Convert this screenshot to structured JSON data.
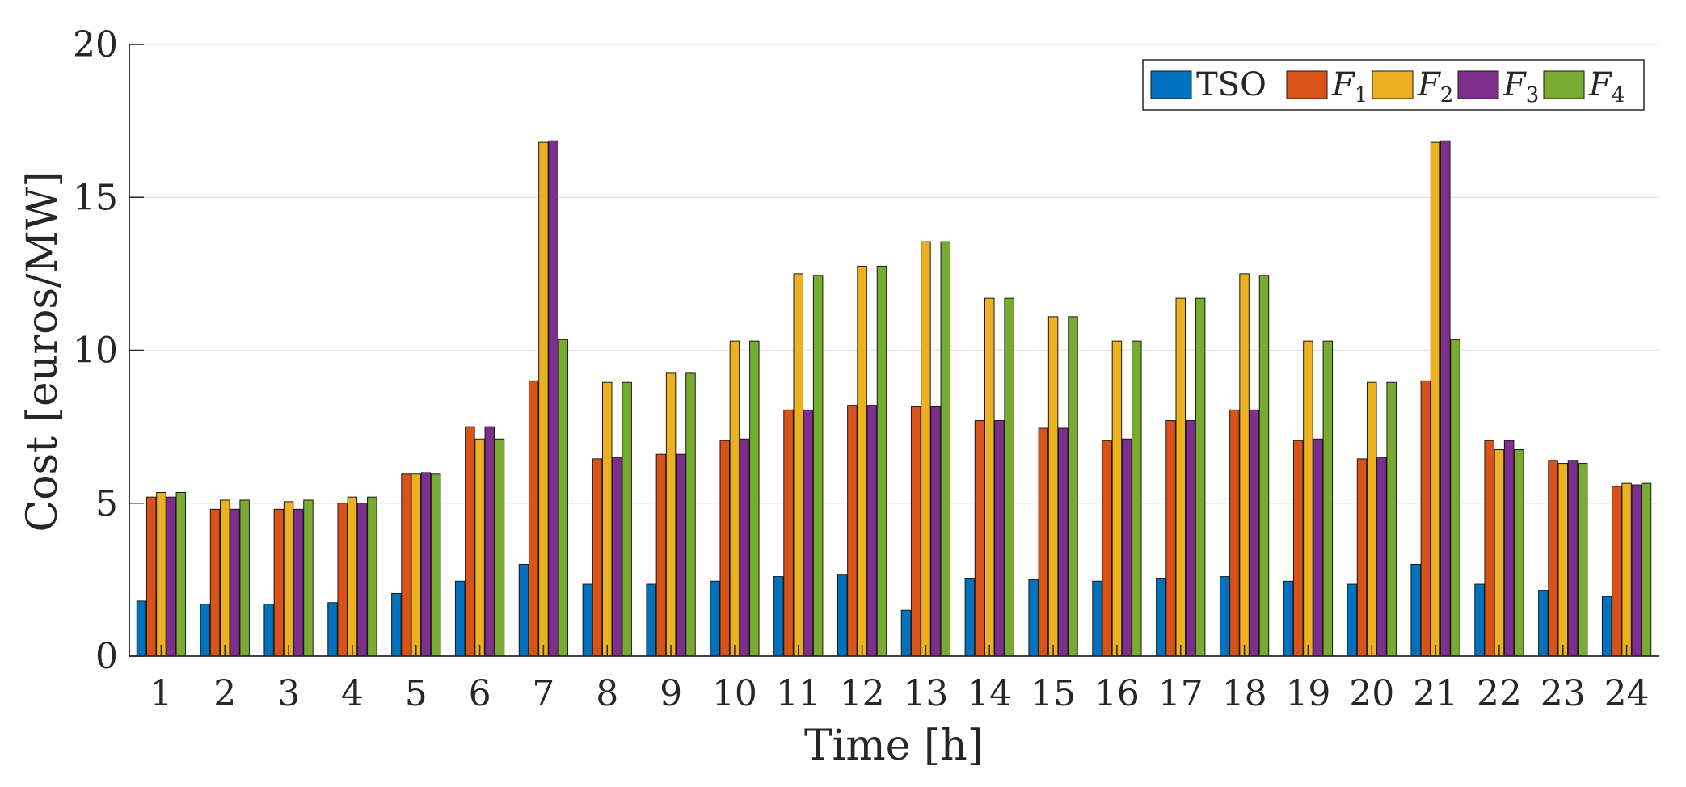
{
  "chart_data": {
    "type": "bar",
    "xlabel": "Time [h]",
    "ylabel": "Cost [euros/MW]",
    "ylim": [
      0,
      20
    ],
    "yticks": [
      "0",
      "5",
      "10",
      "15",
      "20"
    ],
    "grid": "horizontal",
    "legend_position": "top-right",
    "categories": [
      "1",
      "2",
      "3",
      "4",
      "5",
      "6",
      "7",
      "8",
      "9",
      "10",
      "11",
      "12",
      "13",
      "14",
      "15",
      "16",
      "17",
      "18",
      "19",
      "20",
      "21",
      "22",
      "23",
      "24"
    ],
    "series": [
      {
        "name": "TSO",
        "label_main": "TSO",
        "label_sub": "",
        "color": "#0072BD",
        "values": [
          1.8,
          1.7,
          1.7,
          1.75,
          2.05,
          2.45,
          3.0,
          2.35,
          2.35,
          2.45,
          2.6,
          2.65,
          1.5,
          2.55,
          2.5,
          2.45,
          2.55,
          2.6,
          2.45,
          2.35,
          3.0,
          2.35,
          2.15,
          1.95
        ]
      },
      {
        "name": "F1",
        "label_main": "F",
        "label_sub": "1",
        "color": "#D95319",
        "values": [
          5.2,
          4.8,
          4.8,
          5.0,
          5.95,
          7.5,
          9.0,
          6.45,
          6.6,
          7.05,
          8.05,
          8.2,
          8.15,
          7.7,
          7.45,
          7.05,
          7.7,
          8.05,
          7.05,
          6.45,
          9.0,
          7.05,
          6.4,
          5.55
        ]
      },
      {
        "name": "F2",
        "label_main": "F",
        "label_sub": "2",
        "color": "#EDB120",
        "values": [
          5.35,
          5.1,
          5.05,
          5.2,
          5.95,
          7.1,
          16.8,
          8.95,
          9.25,
          10.3,
          12.5,
          12.75,
          13.55,
          11.7,
          11.1,
          10.3,
          11.7,
          12.5,
          10.3,
          8.95,
          16.8,
          6.75,
          6.3,
          5.65
        ]
      },
      {
        "name": "F3",
        "label_main": "F",
        "label_sub": "3",
        "color": "#7E2F8E",
        "values": [
          5.2,
          4.8,
          4.8,
          5.0,
          6.0,
          7.5,
          16.85,
          6.5,
          6.6,
          7.1,
          8.05,
          8.2,
          8.15,
          7.7,
          7.45,
          7.1,
          7.7,
          8.05,
          7.1,
          6.5,
          16.85,
          7.05,
          6.4,
          5.6
        ]
      },
      {
        "name": "F4",
        "label_main": "F",
        "label_sub": "4",
        "color": "#77AC30",
        "values": [
          5.35,
          5.1,
          5.1,
          5.2,
          5.95,
          7.1,
          10.35,
          8.95,
          9.25,
          10.3,
          12.45,
          12.75,
          13.55,
          11.7,
          11.1,
          10.3,
          11.7,
          12.45,
          10.3,
          8.95,
          10.35,
          6.75,
          6.3,
          5.65
        ]
      }
    ]
  }
}
